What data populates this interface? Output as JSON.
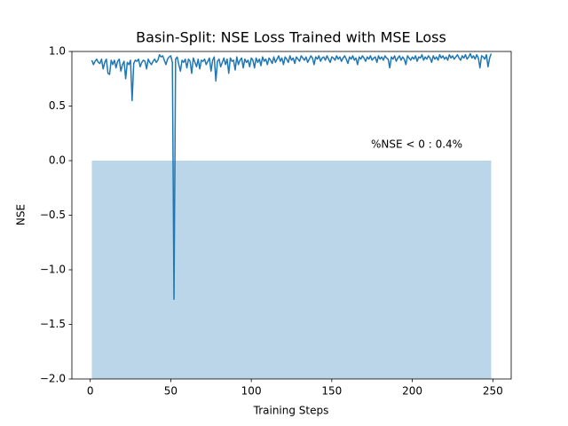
{
  "chart_data": {
    "type": "line",
    "title": "Basin-Split: NSE Loss Trained with MSE Loss",
    "xlabel": "Training Steps",
    "ylabel": "NSE",
    "annotation": "%NSE < 0 : 0.4%",
    "x": [
      1,
      2,
      3,
      4,
      5,
      6,
      7,
      8,
      9,
      10,
      11,
      12,
      13,
      14,
      15,
      16,
      17,
      18,
      19,
      20,
      21,
      22,
      23,
      24,
      25,
      26,
      27,
      28,
      29,
      30,
      31,
      32,
      33,
      34,
      35,
      36,
      37,
      38,
      39,
      40,
      41,
      42,
      43,
      44,
      45,
      46,
      47,
      48,
      49,
      50,
      51,
      52,
      53,
      54,
      55,
      56,
      57,
      58,
      59,
      60,
      61,
      62,
      63,
      64,
      65,
      66,
      67,
      68,
      69,
      70,
      71,
      72,
      73,
      74,
      75,
      76,
      77,
      78,
      79,
      80,
      81,
      82,
      83,
      84,
      85,
      86,
      87,
      88,
      89,
      90,
      91,
      92,
      93,
      94,
      95,
      96,
      97,
      98,
      99,
      100,
      101,
      102,
      103,
      104,
      105,
      106,
      107,
      108,
      109,
      110,
      111,
      112,
      113,
      114,
      115,
      116,
      117,
      118,
      119,
      120,
      121,
      122,
      123,
      124,
      125,
      126,
      127,
      128,
      129,
      130,
      131,
      132,
      133,
      134,
      135,
      136,
      137,
      138,
      139,
      140,
      141,
      142,
      143,
      144,
      145,
      146,
      147,
      148,
      149,
      150,
      151,
      152,
      153,
      154,
      155,
      156,
      157,
      158,
      159,
      160,
      161,
      162,
      163,
      164,
      165,
      166,
      167,
      168,
      169,
      170,
      171,
      172,
      173,
      174,
      175,
      176,
      177,
      178,
      179,
      180,
      181,
      182,
      183,
      184,
      185,
      186,
      187,
      188,
      189,
      190,
      191,
      192,
      193,
      194,
      195,
      196,
      197,
      198,
      199,
      200,
      201,
      202,
      203,
      204,
      205,
      206,
      207,
      208,
      209,
      210,
      211,
      212,
      213,
      214,
      215,
      216,
      217,
      218,
      219,
      220,
      221,
      222,
      223,
      224,
      225,
      226,
      227,
      228,
      229,
      230,
      231,
      232,
      233,
      234,
      235,
      236,
      237,
      238,
      239,
      240,
      241,
      242,
      243,
      244,
      245,
      246,
      247,
      248,
      249
    ],
    "series": [
      {
        "color": "#1f77b4",
        "values": [
          0.92,
          0.88,
          0.91,
          0.93,
          0.9,
          0.89,
          0.93,
          0.84,
          0.9,
          0.93,
          0.8,
          0.79,
          0.92,
          0.88,
          0.92,
          0.85,
          0.91,
          0.93,
          0.82,
          0.88,
          0.91,
          0.75,
          0.9,
          0.88,
          0.92,
          0.55,
          0.89,
          0.92,
          0.91,
          0.93,
          0.86,
          0.9,
          0.92,
          0.91,
          0.84,
          0.93,
          0.9,
          0.88,
          0.91,
          0.93,
          0.9,
          0.92,
          0.97,
          0.95,
          0.96,
          0.92,
          0.88,
          0.93,
          0.95,
          0.96,
          0.9,
          -1.27,
          0.93,
          0.95,
          0.88,
          0.82,
          0.92,
          0.9,
          0.93,
          0.85,
          0.93,
          0.91,
          0.8,
          0.94,
          0.9,
          0.86,
          0.93,
          0.84,
          0.92,
          0.91,
          0.93,
          0.88,
          0.91,
          0.94,
          0.82,
          0.92,
          0.95,
          0.73,
          0.91,
          0.93,
          0.86,
          0.9,
          0.94,
          0.88,
          0.93,
          0.8,
          0.94,
          0.91,
          0.92,
          0.83,
          0.95,
          0.88,
          0.92,
          0.94,
          0.85,
          0.93,
          0.9,
          0.92,
          0.86,
          0.94,
          0.92,
          0.85,
          0.94,
          0.9,
          0.93,
          0.87,
          0.95,
          0.91,
          0.93,
          0.88,
          0.94,
          0.92,
          0.89,
          0.95,
          0.9,
          0.93,
          0.96,
          0.91,
          0.94,
          0.88,
          0.95,
          0.93,
          0.9,
          0.96,
          0.92,
          0.94,
          0.89,
          0.95,
          0.93,
          0.91,
          0.96,
          0.94,
          0.92,
          0.95,
          0.9,
          0.93,
          0.96,
          0.94,
          0.88,
          0.95,
          0.93,
          0.96,
          0.91,
          0.94,
          0.95,
          0.92,
          0.96,
          0.93,
          0.9,
          0.95,
          0.94,
          0.92,
          0.96,
          0.93,
          0.95,
          0.91,
          0.94,
          0.96,
          0.93,
          0.89,
          0.95,
          0.93,
          0.96,
          0.92,
          0.94,
          0.88,
          0.95,
          0.93,
          0.96,
          0.94,
          0.91,
          0.95,
          0.93,
          0.96,
          0.92,
          0.94,
          0.95,
          0.9,
          0.96,
          0.93,
          0.95,
          0.92,
          0.96,
          0.94,
          0.93,
          0.85,
          0.95,
          0.93,
          0.96,
          0.91,
          0.94,
          0.96,
          0.92,
          0.95,
          0.93,
          0.88,
          0.96,
          0.94,
          0.92,
          0.95,
          0.93,
          0.96,
          0.91,
          0.95,
          0.94,
          0.97,
          0.92,
          0.95,
          0.93,
          0.96,
          0.94,
          0.9,
          0.96,
          0.93,
          0.95,
          0.92,
          0.97,
          0.94,
          0.96,
          0.93,
          0.95,
          0.92,
          0.97,
          0.94,
          0.96,
          0.93,
          0.95,
          0.97,
          0.94,
          0.92,
          0.96,
          0.94,
          0.97,
          0.93,
          0.95,
          0.98,
          0.94,
          0.96,
          0.93,
          0.97,
          0.94,
          0.85,
          0.96,
          0.95,
          0.93,
          0.97,
          0.86,
          0.94,
          0.98
        ]
      }
    ],
    "span": {
      "x": [
        1,
        249
      ],
      "y": [
        -2,
        0
      ],
      "color": "#1f77b4",
      "alpha": 0.3
    },
    "xlim": [
      -11.4,
      261.4
    ],
    "ylim": [
      -2,
      1
    ],
    "xticks": [
      0,
      50,
      100,
      150,
      200,
      250
    ],
    "yticks": [
      {
        "value": -2,
        "label": "−2.0"
      },
      {
        "value": -1.5,
        "label": "−1.5"
      },
      {
        "value": -1,
        "label": "−1.0"
      },
      {
        "value": -0.5,
        "label": "−0.5"
      },
      {
        "value": 0,
        "label": "0.0"
      },
      0.5,
      {
        "value": 1,
        "label": "1.0"
      }
    ]
  }
}
